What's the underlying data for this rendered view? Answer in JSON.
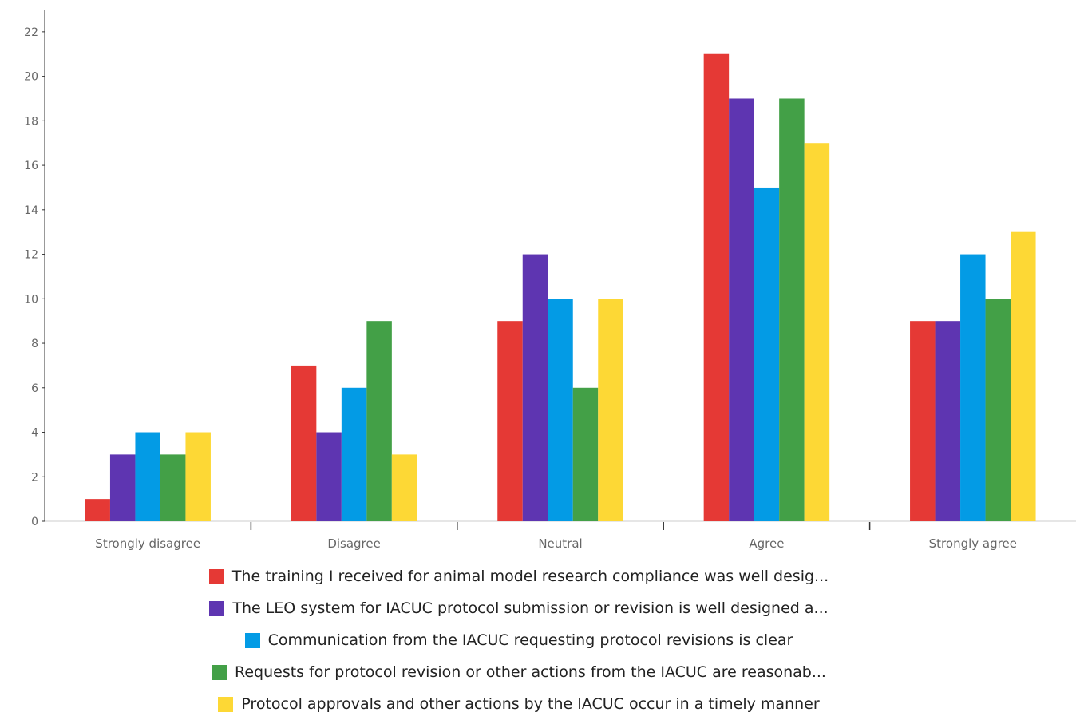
{
  "chart_data": {
    "type": "bar",
    "categories": [
      "Strongly disagree",
      "Disagree",
      "Neutral",
      "Agree",
      "Strongly agree"
    ],
    "series": [
      {
        "name": "The training I received for animal model research compliance was well desig...",
        "color": "#e53935",
        "values": [
          1,
          7,
          9,
          21,
          9
        ]
      },
      {
        "name": "The LEO system for IACUC protocol submission or revision is well designed a...",
        "color": "#5e35b1",
        "values": [
          3,
          4,
          12,
          19,
          9
        ]
      },
      {
        "name": "Communication from the IACUC requesting protocol revisions is clear",
        "color": "#039be5",
        "values": [
          4,
          6,
          10,
          15,
          12
        ]
      },
      {
        "name": "Requests for protocol revision or other actions from the IACUC are reasonab...",
        "color": "#43a047",
        "values": [
          3,
          9,
          6,
          19,
          10
        ]
      },
      {
        "name": "Protocol approvals and other actions by the IACUC occur in a timely manner",
        "color": "#fdd835",
        "values": [
          4,
          3,
          10,
          17,
          13
        ]
      }
    ],
    "ylim": [
      0,
      23
    ],
    "yticks": [
      0,
      2,
      4,
      6,
      8,
      10,
      12,
      14,
      16,
      18,
      20,
      22
    ],
    "grid": false,
    "legend_position": "bottom"
  }
}
